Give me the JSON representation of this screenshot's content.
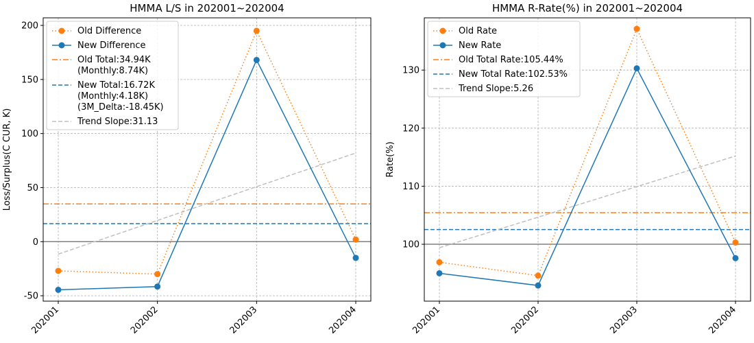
{
  "chart_data": [
    {
      "type": "line",
      "title": "HMMA L/S in 202001~202004",
      "xlabel": "",
      "ylabel": "Loss/Surplus(C CUR, K)",
      "categories": [
        "202001",
        "202002",
        "202003",
        "202004"
      ],
      "ylim": [
        -55,
        207
      ],
      "yticks": [
        -50,
        0,
        50,
        100,
        150,
        200
      ],
      "grid": true,
      "legend_position": "top-left",
      "series": [
        {
          "name": "Old Difference",
          "values": [
            -27,
            -30,
            195,
            2
          ],
          "color": "#ff7f0e",
          "style": "dotted",
          "marker": true
        },
        {
          "name": "New Difference",
          "values": [
            -44.5,
            -41.5,
            168,
            -15
          ],
          "color": "#1f77b4",
          "style": "solid",
          "marker": true
        }
      ],
      "reference_lines": [
        {
          "label": "Old Total:34.94K\n(Monthly:8.74K)",
          "value": 34.94,
          "color": "#ff7f0e",
          "style": "dashdot"
        },
        {
          "label": "New Total:16.72K\n(Monthly:4.18K)\n(3M_Delta:-18.45K)",
          "value": 16.72,
          "color": "#1f77b4",
          "style": "dashed"
        }
      ],
      "zero_line": {
        "value": 0,
        "color": "#808080"
      },
      "trend": {
        "label": "Trend Slope:31.13",
        "start": -11.5,
        "end": 82,
        "color": "#bfbfbf",
        "style": "dashed"
      }
    },
    {
      "type": "line",
      "title": "HMMA R-Rate(%) in 202001~202004",
      "xlabel": "",
      "ylabel": "Rate(%)",
      "categories": [
        "202001",
        "202002",
        "202003",
        "202004"
      ],
      "ylim": [
        90.2,
        139
      ],
      "yticks": [
        100,
        110,
        120,
        130
      ],
      "grid": true,
      "legend_position": "top-left",
      "series": [
        {
          "name": "Old Rate",
          "values": [
            96.9,
            94.6,
            137.1,
            100.3
          ],
          "color": "#ff7f0e",
          "style": "dotted",
          "marker": true
        },
        {
          "name": "New Rate",
          "values": [
            95.0,
            92.9,
            130.3,
            97.6
          ],
          "color": "#1f77b4",
          "style": "solid",
          "marker": true
        }
      ],
      "reference_lines": [
        {
          "label": "Old Total Rate:105.44%",
          "value": 105.44,
          "color": "#ff7f0e",
          "style": "dashdot"
        },
        {
          "label": "New Total Rate:102.53%",
          "value": 102.53,
          "color": "#1f77b4",
          "style": "dashed"
        }
      ],
      "zero_line": {
        "value": 100,
        "color": "#808080"
      },
      "trend": {
        "label": "Trend Slope:5.26",
        "start": 99.4,
        "end": 115.2,
        "color": "#bfbfbf",
        "style": "dashed"
      }
    }
  ]
}
